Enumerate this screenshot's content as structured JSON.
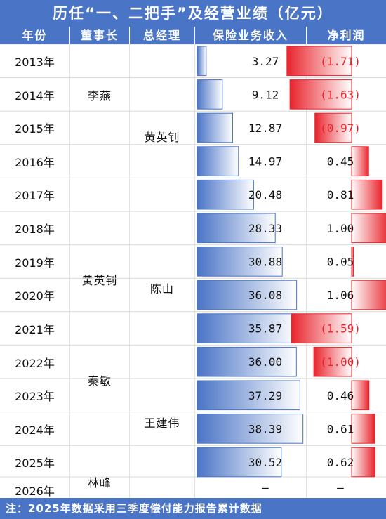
{
  "title": "历任“一、二把手”及经营业绩（亿元）",
  "headers": {
    "year": "年份",
    "chairman": "董事长",
    "gm": "总经理",
    "income": "保险业务收入",
    "profit": "净利润"
  },
  "chairmen": [
    "李燕",
    "黄英钊",
    "秦敏",
    "林峰"
  ],
  "gms": [
    "黄英钊",
    "陈山",
    "王建伟"
  ],
  "footnote": "注：2025年数据采用三季度偿付能力报告累计数据",
  "colors": {
    "header": "#4a74c6",
    "income_bar": "#4a74c6",
    "profit_bar": "#e8242c"
  },
  "chart_data": {
    "type": "table",
    "years": [
      "2013年",
      "2014年",
      "2015年",
      "2016年",
      "2017年",
      "2018年",
      "2019年",
      "2020年",
      "2021年",
      "2022年",
      "2023年",
      "2024年",
      "2025年",
      "2026年"
    ],
    "income": [
      3.27,
      9.12,
      12.87,
      14.97,
      20.48,
      28.33,
      30.88,
      36.08,
      35.87,
      36.0,
      37.29,
      38.39,
      30.52,
      null
    ],
    "income_labels": [
      "3.27",
      "9.12",
      "12.87",
      "14.97",
      "20.48",
      "28.33",
      "30.88",
      "36.08",
      "35.87",
      "36.00",
      "37.29",
      "38.39",
      "30.52",
      "–"
    ],
    "net_profit": [
      -1.71,
      -1.63,
      -0.97,
      0.45,
      0.81,
      1.0,
      0.05,
      1.06,
      -1.59,
      -1.0,
      0.46,
      0.61,
      0.62,
      null
    ],
    "net_profit_labels": [
      "(1.71)",
      "(1.63)",
      "(0.97)",
      "0.45",
      "0.81",
      "1.00",
      "0.05",
      "1.06",
      "(1.59)",
      "(1.00)",
      "0.46",
      "0.61",
      "0.62",
      "–"
    ]
  }
}
